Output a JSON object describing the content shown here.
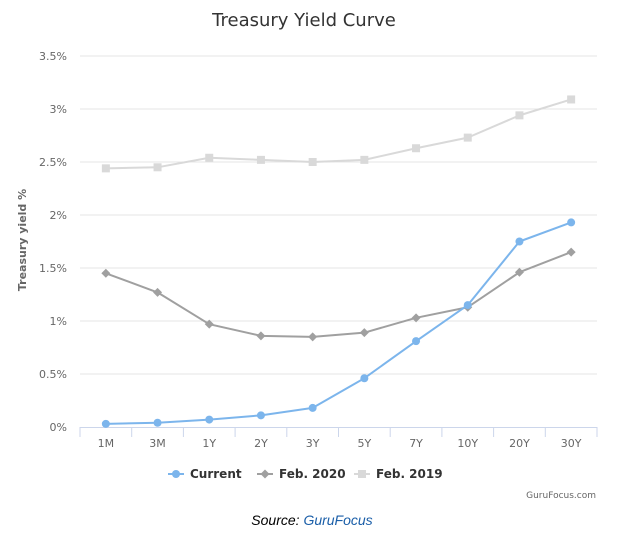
{
  "chart_data": {
    "type": "line",
    "title": "Treasury Yield Curve",
    "xlabel": "",
    "ylabel": "Treasury yield %",
    "ylim": [
      0,
      3.5
    ],
    "yticks": [
      "0%",
      "0.5%",
      "1%",
      "1.5%",
      "2%",
      "2.5%",
      "3%",
      "3.5%"
    ],
    "categories": [
      "1M",
      "3M",
      "1Y",
      "2Y",
      "3Y",
      "5Y",
      "7Y",
      "10Y",
      "20Y",
      "30Y"
    ],
    "series": [
      {
        "name": "Current",
        "color": "#7cb5ec",
        "marker": "circle",
        "values": [
          0.03,
          0.04,
          0.07,
          0.11,
          0.18,
          0.46,
          0.81,
          1.15,
          1.75,
          1.93
        ]
      },
      {
        "name": "Feb. 2020",
        "color": "#a0a0a0",
        "marker": "diamond",
        "values": [
          1.45,
          1.27,
          0.97,
          0.86,
          0.85,
          0.89,
          1.03,
          1.13,
          1.46,
          1.65
        ]
      },
      {
        "name": "Feb. 2019",
        "color": "#d9d9d9",
        "marker": "square",
        "values": [
          2.44,
          2.45,
          2.54,
          2.52,
          2.5,
          2.52,
          2.63,
          2.73,
          2.94,
          3.09
        ]
      }
    ],
    "legend_position": "bottom-center",
    "grid": true,
    "credit": "GuruFocus.com"
  },
  "caption": {
    "prefix": "Source: ",
    "link": "GuruFocus"
  }
}
